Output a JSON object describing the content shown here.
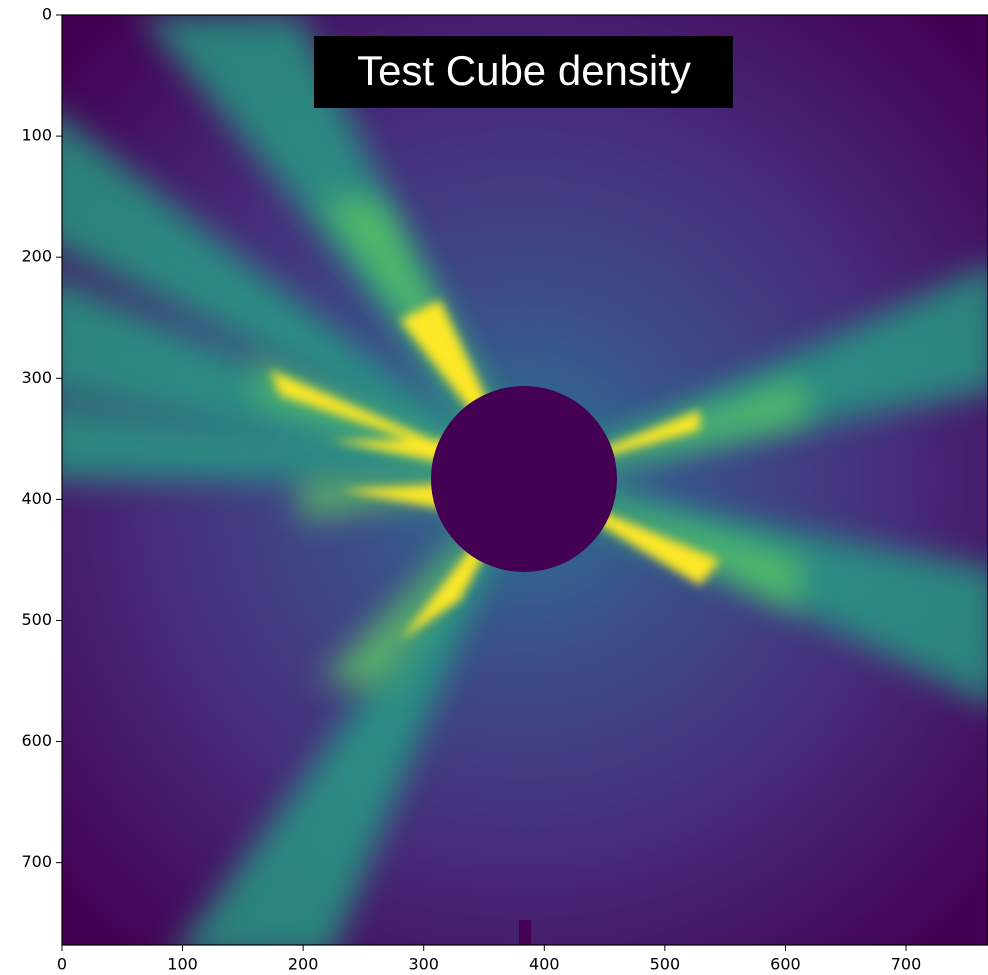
{
  "chart_data": {
    "type": "image",
    "title": "Test Cube density",
    "xlim": [
      0,
      768
    ],
    "ylim": [
      768,
      0
    ],
    "xticks": [
      0,
      100,
      200,
      300,
      400,
      500,
      600,
      700
    ],
    "yticks": [
      0,
      100,
      200,
      300,
      400,
      500,
      600,
      700
    ]
  }
}
